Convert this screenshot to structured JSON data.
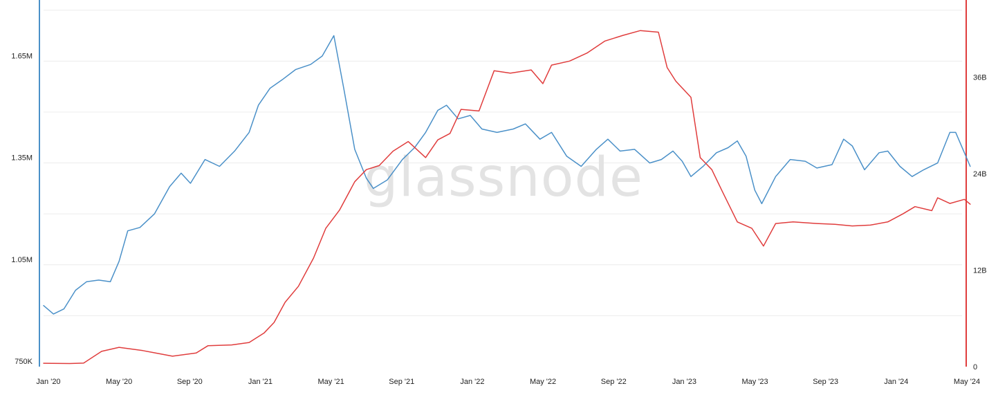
{
  "watermark": "glassnode",
  "chart_data": {
    "type": "line",
    "title": "",
    "xlabel": "",
    "grid": true,
    "legend": "none",
    "x_ticks": [
      "Jan '20",
      "May '20",
      "Sep '20",
      "Jan '21",
      "May '21",
      "Sep '21",
      "Jan '22",
      "May '22",
      "Sep '22",
      "Jan '23",
      "May '23",
      "Sep '23",
      "Jan '24",
      "May '24"
    ],
    "x_range": [
      "2020-01-01",
      "2024-05-01"
    ],
    "y_left": {
      "ticks": [
        "750K",
        "1.05M",
        "1.35M",
        "1.65M"
      ],
      "tick_values": [
        750000,
        1050000,
        1350000,
        1650000
      ],
      "range": [
        750000,
        1830000
      ],
      "color": "#4a90c8"
    },
    "y_right": {
      "ticks": [
        "0",
        "12B",
        "24B",
        "36B"
      ],
      "tick_values": [
        0,
        12000000000,
        24000000000,
        36000000000
      ],
      "range": [
        0,
        45600000000
      ],
      "color": "#e03c3c"
    },
    "series": [
      {
        "axis": "left",
        "color": "#4a90c8",
        "points": [
          [
            "2020-01-01",
            930000
          ],
          [
            "2020-01-18",
            905000
          ],
          [
            "2020-02-05",
            920000
          ],
          [
            "2020-02-25",
            975000
          ],
          [
            "2020-03-15",
            1000000
          ],
          [
            "2020-04-05",
            1005000
          ],
          [
            "2020-04-25",
            1000000
          ],
          [
            "2020-05-10",
            1060000
          ],
          [
            "2020-05-25",
            1150000
          ],
          [
            "2020-06-15",
            1160000
          ],
          [
            "2020-07-10",
            1200000
          ],
          [
            "2020-08-05",
            1280000
          ],
          [
            "2020-08-25",
            1320000
          ],
          [
            "2020-09-10",
            1290000
          ],
          [
            "2020-10-05",
            1360000
          ],
          [
            "2020-10-30",
            1340000
          ],
          [
            "2020-11-25",
            1385000
          ],
          [
            "2020-12-20",
            1440000
          ],
          [
            "2021-01-05",
            1520000
          ],
          [
            "2021-01-25",
            1570000
          ],
          [
            "2021-02-15",
            1595000
          ],
          [
            "2021-03-10",
            1625000
          ],
          [
            "2021-04-05",
            1640000
          ],
          [
            "2021-04-25",
            1665000
          ],
          [
            "2021-05-10",
            1710000
          ],
          [
            "2021-05-15",
            1725000
          ],
          [
            "2021-06-01",
            1570000
          ],
          [
            "2021-06-20",
            1390000
          ],
          [
            "2021-07-10",
            1305000
          ],
          [
            "2021-07-22",
            1275000
          ],
          [
            "2021-08-15",
            1300000
          ],
          [
            "2021-09-10",
            1360000
          ],
          [
            "2021-10-01",
            1395000
          ],
          [
            "2021-10-20",
            1440000
          ],
          [
            "2021-11-10",
            1505000
          ],
          [
            "2021-11-25",
            1520000
          ],
          [
            "2021-12-15",
            1480000
          ],
          [
            "2022-01-05",
            1490000
          ],
          [
            "2022-01-25",
            1450000
          ],
          [
            "2022-02-20",
            1440000
          ],
          [
            "2022-03-20",
            1450000
          ],
          [
            "2022-04-10",
            1465000
          ],
          [
            "2022-05-05",
            1420000
          ],
          [
            "2022-05-25",
            1440000
          ],
          [
            "2022-06-20",
            1370000
          ],
          [
            "2022-07-15",
            1340000
          ],
          [
            "2022-08-10",
            1390000
          ],
          [
            "2022-08-30",
            1420000
          ],
          [
            "2022-09-20",
            1385000
          ],
          [
            "2022-10-15",
            1390000
          ],
          [
            "2022-11-10",
            1350000
          ],
          [
            "2022-11-30",
            1360000
          ],
          [
            "2022-12-20",
            1385000
          ],
          [
            "2023-01-05",
            1355000
          ],
          [
            "2023-01-20",
            1310000
          ],
          [
            "2023-02-10",
            1340000
          ],
          [
            "2023-03-05",
            1380000
          ],
          [
            "2023-03-25",
            1395000
          ],
          [
            "2023-04-10",
            1415000
          ],
          [
            "2023-04-25",
            1370000
          ],
          [
            "2023-05-10",
            1270000
          ],
          [
            "2023-05-22",
            1230000
          ],
          [
            "2023-06-15",
            1310000
          ],
          [
            "2023-07-10",
            1360000
          ],
          [
            "2023-08-05",
            1355000
          ],
          [
            "2023-08-25",
            1335000
          ],
          [
            "2023-09-20",
            1345000
          ],
          [
            "2023-10-10",
            1420000
          ],
          [
            "2023-10-25",
            1400000
          ],
          [
            "2023-11-15",
            1330000
          ],
          [
            "2023-12-10",
            1380000
          ],
          [
            "2023-12-25",
            1385000
          ],
          [
            "2024-01-15",
            1340000
          ],
          [
            "2024-02-05",
            1310000
          ],
          [
            "2024-02-25",
            1330000
          ],
          [
            "2024-03-20",
            1350000
          ],
          [
            "2024-04-10",
            1440000
          ],
          [
            "2024-04-20",
            1440000
          ],
          [
            "2024-05-05",
            1380000
          ],
          [
            "2024-05-15",
            1340000
          ]
        ]
      },
      {
        "axis": "right",
        "color": "#e03c3c",
        "points": [
          [
            "2020-01-01",
            420000000
          ],
          [
            "2020-02-15",
            390000000
          ],
          [
            "2020-03-10",
            440000000
          ],
          [
            "2020-04-10",
            1900000000
          ],
          [
            "2020-05-10",
            2400000000
          ],
          [
            "2020-06-20",
            2000000000
          ],
          [
            "2020-08-10",
            1300000000
          ],
          [
            "2020-09-20",
            1700000000
          ],
          [
            "2020-10-10",
            2600000000
          ],
          [
            "2020-11-20",
            2700000000
          ],
          [
            "2020-12-20",
            3000000000
          ],
          [
            "2021-01-15",
            4200000000
          ],
          [
            "2021-02-01",
            5500000000
          ],
          [
            "2021-02-20",
            8000000000
          ],
          [
            "2021-03-15",
            10000000000
          ],
          [
            "2021-04-10",
            13500000000
          ],
          [
            "2021-05-01",
            17200000000
          ],
          [
            "2021-05-25",
            19500000000
          ],
          [
            "2021-06-20",
            23000000000
          ],
          [
            "2021-07-10",
            24500000000
          ],
          [
            "2021-08-01",
            25000000000
          ],
          [
            "2021-08-25",
            26800000000
          ],
          [
            "2021-09-20",
            28000000000
          ],
          [
            "2021-10-20",
            26000000000
          ],
          [
            "2021-11-10",
            28200000000
          ],
          [
            "2021-12-01",
            29000000000
          ],
          [
            "2021-12-20",
            32000000000
          ],
          [
            "2022-01-20",
            31800000000
          ],
          [
            "2022-02-15",
            36800000000
          ],
          [
            "2022-03-15",
            36500000000
          ],
          [
            "2022-04-20",
            36900000000
          ],
          [
            "2022-05-10",
            35200000000
          ],
          [
            "2022-05-25",
            37500000000
          ],
          [
            "2022-06-25",
            38000000000
          ],
          [
            "2022-07-25",
            39000000000
          ],
          [
            "2022-08-25",
            40500000000
          ],
          [
            "2022-09-25",
            41200000000
          ],
          [
            "2022-10-25",
            41800000000
          ],
          [
            "2022-11-25",
            41600000000
          ],
          [
            "2022-12-10",
            37200000000
          ],
          [
            "2022-12-25",
            35500000000
          ],
          [
            "2023-01-20",
            33500000000
          ],
          [
            "2023-02-05",
            26000000000
          ],
          [
            "2023-02-25",
            24500000000
          ],
          [
            "2023-03-15",
            21800000000
          ],
          [
            "2023-04-10",
            18000000000
          ],
          [
            "2023-05-05",
            17200000000
          ],
          [
            "2023-05-25",
            15000000000
          ],
          [
            "2023-06-15",
            17800000000
          ],
          [
            "2023-07-15",
            18000000000
          ],
          [
            "2023-08-25",
            17800000000
          ],
          [
            "2023-09-25",
            17700000000
          ],
          [
            "2023-10-25",
            17500000000
          ],
          [
            "2023-11-25",
            17600000000
          ],
          [
            "2023-12-25",
            18000000000
          ],
          [
            "2024-01-20",
            19000000000
          ],
          [
            "2024-02-10",
            19900000000
          ],
          [
            "2024-03-10",
            19400000000
          ],
          [
            "2024-03-20",
            21000000000
          ],
          [
            "2024-04-10",
            20300000000
          ],
          [
            "2024-05-05",
            20800000000
          ],
          [
            "2024-05-15",
            20200000000
          ]
        ]
      }
    ]
  }
}
